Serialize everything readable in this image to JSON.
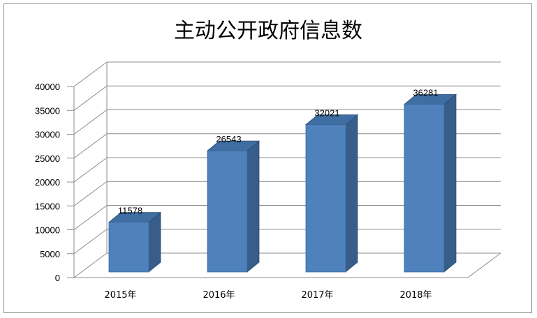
{
  "chart_data": {
    "type": "bar",
    "title": "主动公开政府信息数",
    "categories": [
      "2015年",
      "2016年",
      "2017年",
      "2018年"
    ],
    "values": [
      11578,
      26543,
      32021,
      36281
    ],
    "xlabel": "",
    "ylabel": "",
    "ylim": [
      0,
      40000
    ],
    "yticks": [
      0,
      5000,
      10000,
      15000,
      20000,
      25000,
      30000,
      35000,
      40000
    ],
    "grid": true,
    "legend": "none",
    "style": "3d-column",
    "colors": {
      "bar_front": "#4f81bd",
      "bar_side": "#385d8a",
      "bar_top": "#3f6ea3",
      "gridline": "#8c8c8c"
    }
  }
}
